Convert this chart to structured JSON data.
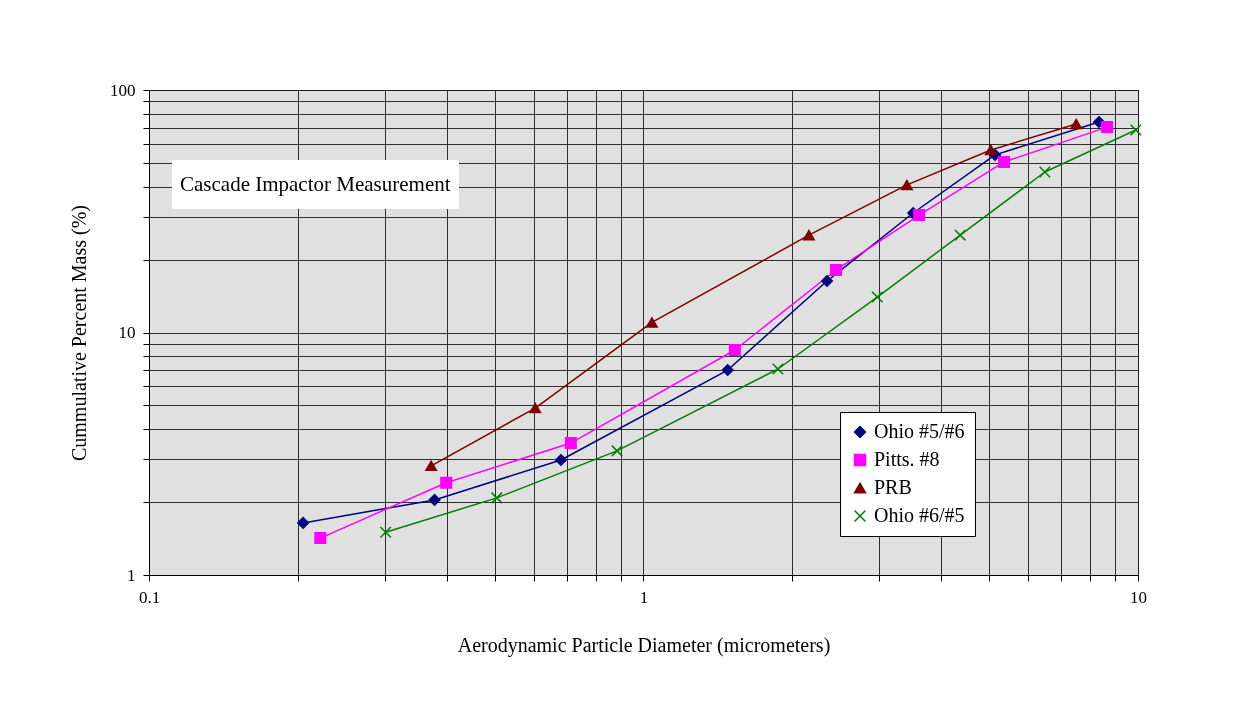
{
  "chart_data": {
    "type": "line",
    "xlabel": "Aerodynamic Particle Diameter (micrometers)",
    "ylabel": "Cummulative Percent Mass (%)",
    "annotations": [
      "Cascade Impactor Measurement"
    ],
    "log": "xy",
    "grid": true,
    "legend": "bottom right",
    "xlim": [
      0.1,
      10
    ],
    "ylim": [
      1,
      100
    ],
    "xticks": [
      0.1,
      {
        "value": 0.2,
        "label": null
      },
      {
        "value": 0.3,
        "label": null
      },
      {
        "value": 0.4,
        "label": null
      },
      {
        "value": 0.5,
        "label": null
      },
      {
        "value": 0.6,
        "label": null
      },
      {
        "value": 0.7,
        "label": null
      },
      {
        "value": 0.8,
        "label": null
      },
      {
        "value": 0.9,
        "label": null
      },
      1,
      {
        "value": 2,
        "label": null
      },
      {
        "value": 3,
        "label": null
      },
      {
        "value": 4,
        "label": null
      },
      {
        "value": 5,
        "label": null
      },
      {
        "value": 6,
        "label": null
      },
      {
        "value": 7,
        "label": null
      },
      {
        "value": 8,
        "label": null
      },
      {
        "value": 9,
        "label": null
      },
      10
    ],
    "yticks": [
      1,
      {
        "value": 2,
        "label": null
      },
      {
        "value": 3,
        "label": null
      },
      {
        "value": 4,
        "label": null
      },
      {
        "value": 5,
        "label": null
      },
      {
        "value": 6,
        "label": null
      },
      {
        "value": 7,
        "label": null
      },
      {
        "value": 8,
        "label": null
      },
      {
        "value": 9,
        "label": null
      },
      10,
      {
        "value": 20,
        "label": null
      },
      {
        "value": 30,
        "label": null
      },
      {
        "value": 40,
        "label": null
      },
      {
        "value": 50,
        "label": null
      },
      {
        "value": 60,
        "label": null
      },
      {
        "value": 70,
        "label": null
      },
      {
        "value": 80,
        "label": null
      },
      {
        "value": 90,
        "label": null
      },
      100
    ],
    "series": [
      {
        "name": "Ohio #5/#6",
        "color": "#000080",
        "marker": "diamond",
        "x": [
          0.205,
          0.378,
          0.681,
          1.48,
          2.35,
          3.51,
          5.14,
          8.34
        ],
        "values": [
          1.64,
          2.04,
          2.98,
          7.0,
          16.3,
          31.1,
          54,
          73.8
        ]
      },
      {
        "name": "Pitts. #8",
        "color": "#ff00ff",
        "marker": "square",
        "x": [
          0.222,
          0.399,
          0.713,
          1.53,
          2.45,
          3.61,
          5.36,
          8.66
        ],
        "values": [
          1.42,
          2.4,
          3.5,
          8.47,
          18.1,
          30.5,
          50.5,
          70.3
        ]
      },
      {
        "name": "PRB",
        "color": "#800000",
        "marker": "triangle",
        "x": [
          0.372,
          0.604,
          1.04,
          2.16,
          3.41,
          5.04,
          7.5
        ],
        "values": [
          2.82,
          4.88,
          11.0,
          25.2,
          40.6,
          56.6,
          72.4
        ]
      },
      {
        "name": "Ohio #6/#5",
        "color": "#008000",
        "marker": "cross",
        "x": [
          0.301,
          0.505,
          0.884,
          1.87,
          2.97,
          4.37,
          6.48,
          9.9
        ],
        "values": [
          1.5,
          2.08,
          3.25,
          7.07,
          14.0,
          25.2,
          45.9,
          68.4
        ]
      }
    ]
  }
}
